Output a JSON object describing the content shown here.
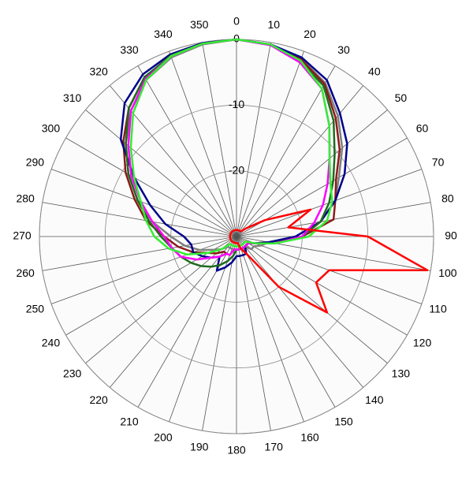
{
  "chart_data": {
    "type": "polar",
    "rlim": [
      -30,
      0
    ],
    "rticks": [
      0,
      -10,
      -20
    ],
    "thetaticks": [
      0,
      10,
      20,
      30,
      40,
      50,
      60,
      70,
      80,
      90,
      100,
      110,
      120,
      130,
      140,
      150,
      160,
      170,
      180,
      190,
      200,
      210,
      220,
      230,
      240,
      250,
      260,
      270,
      280,
      290,
      300,
      310,
      320,
      330,
      340,
      350
    ],
    "theta": [
      0,
      10,
      20,
      30,
      40,
      50,
      60,
      70,
      80,
      90,
      100,
      110,
      120,
      130,
      140,
      150,
      160,
      170,
      180,
      190,
      200,
      210,
      220,
      230,
      240,
      250,
      260,
      270,
      280,
      290,
      300,
      310,
      320,
      330,
      340,
      350
    ],
    "series": [
      {
        "color": "#808080",
        "values": [
          0,
          -0.3,
          -1.2,
          -3,
          -6,
          -9,
          -12,
          -14,
          -17,
          -21,
          -25,
          -26,
          -27,
          -27,
          -28,
          -28,
          -28,
          -28,
          -28,
          -28,
          -28,
          -28,
          -28,
          -27,
          -26,
          -24,
          -22,
          -20,
          -17,
          -14,
          -11,
          -8,
          -5,
          -2.5,
          -1,
          -0.3
        ]
      },
      {
        "color": "#8b1a1a",
        "values": [
          0,
          -0.3,
          -1.3,
          -3.2,
          -6.5,
          -9.5,
          -12.5,
          -14,
          -15,
          -20,
          -25,
          -27,
          -28,
          -28,
          -28,
          -28,
          -28,
          -28,
          -28,
          -28,
          -27,
          -27,
          -27,
          -26,
          -25,
          -23,
          -21,
          -19,
          -16,
          -13.5,
          -10.5,
          -7.5,
          -4.5,
          -2,
          -0.8,
          -0.2
        ]
      },
      {
        "color": "#00008b",
        "values": [
          0,
          -0.3,
          -1,
          -2.5,
          -5.5,
          -8,
          -11,
          -14,
          -17,
          -21,
          -25,
          -27,
          -28,
          -28,
          -28,
          -27,
          -27,
          -27,
          -27,
          -26,
          -25,
          -24,
          -26,
          -25,
          -24,
          -23,
          -23,
          -22,
          -19,
          -16,
          -12,
          -7,
          -3.5,
          -1.5,
          -0.5,
          -0.1
        ]
      },
      {
        "color": "#1e6b1e",
        "values": [
          0,
          -0.4,
          -1.6,
          -3.5,
          -7,
          -10.5,
          -13,
          -15,
          -17,
          -20,
          -24,
          -27,
          -28,
          -28,
          -28,
          -28,
          -28,
          -28,
          -28,
          -27,
          -26,
          -25,
          -24,
          -23,
          -22,
          -21,
          -20,
          -18.5,
          -16.5,
          -14,
          -11,
          -8,
          -4.5,
          -2,
          -0.7,
          -0.2
        ]
      },
      {
        "color": "#ff00ff",
        "values": [
          0,
          -0.4,
          -1.8,
          -4,
          -8,
          -11.5,
          -14,
          -16,
          -18,
          -20,
          -24,
          -27,
          -28,
          -28,
          -28,
          -28,
          -28,
          -28,
          -28,
          -28,
          -27,
          -27,
          -26,
          -25,
          -23,
          -21,
          -20,
          -19,
          -17,
          -14.5,
          -11.5,
          -8.5,
          -5,
          -2.3,
          -0.8,
          -0.2
        ]
      },
      {
        "color": "#33ee33",
        "values": [
          0,
          -0.3,
          -1.5,
          -4,
          -8,
          -11.5,
          -13.5,
          -14.5,
          -16,
          -19,
          -24,
          -27,
          -28.5,
          -28.5,
          -28.5,
          -28.5,
          -28.5,
          -28.5,
          -28.5,
          -28.5,
          -28.5,
          -28.5,
          -28.5,
          -27,
          -25,
          -22,
          -19.5,
          -17.5,
          -16,
          -14.5,
          -12,
          -9,
          -5.5,
          -2.5,
          -0.8,
          -0.2
        ]
      },
      {
        "color": "#ff0000",
        "values": [
          -29,
          -29,
          -29,
          -29,
          -29,
          -28,
          -25,
          -18,
          -22,
          -10,
          -0.5,
          -15,
          -16,
          -12,
          -20,
          -27,
          -28,
          -29,
          -29,
          -29,
          -29,
          -29,
          -29,
          -29,
          -29,
          -29,
          -29,
          -29,
          -29,
          -29,
          -29,
          -29,
          -29,
          -29,
          -29,
          -29
        ]
      }
    ]
  }
}
